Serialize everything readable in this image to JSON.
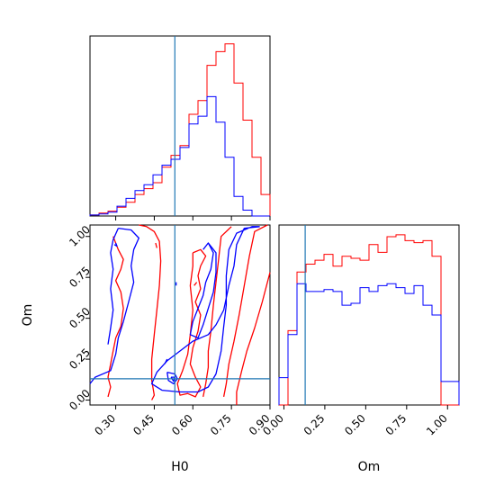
{
  "chart_data": {
    "type": "corner",
    "parameters": [
      "H0",
      "Om"
    ],
    "axis_labels": {
      "H0": "H0",
      "Om": "Om"
    },
    "ranges": {
      "H0": [
        0.2,
        0.9
      ],
      "Om": [
        -0.03,
        1.07
      ]
    },
    "truth": {
      "H0": 0.53,
      "Om": 0.13
    },
    "truth_color": "#1f77b4",
    "series_colors": {
      "red": "#ff0000",
      "blue": "#0000ff"
    },
    "ticks": {
      "H0": {
        "values": [
          0.3,
          0.45,
          0.6,
          0.75,
          0.9
        ],
        "labels": [
          "0.30",
          "0.45",
          "0.60",
          "0.75",
          "0.90"
        ]
      },
      "Om_y": {
        "values": [
          0.0,
          0.25,
          0.5,
          0.75,
          1.0
        ],
        "labels": [
          "0.00",
          "0.25",
          "0.50",
          "0.75",
          "1.00"
        ]
      },
      "Om_x": {
        "values": [
          0.0,
          0.25,
          0.5,
          0.75,
          1.0
        ],
        "labels": [
          "0.00",
          "0.25",
          "0.50",
          "0.75",
          "1.00"
        ]
      }
    },
    "hist_H0": {
      "bin_edges": [
        0.2,
        0.235,
        0.27,
        0.305,
        0.34,
        0.375,
        0.41,
        0.445,
        0.48,
        0.515,
        0.55,
        0.585,
        0.62,
        0.655,
        0.69,
        0.725,
        0.76,
        0.795,
        0.83,
        0.865,
        0.9
      ],
      "red": [
        0.5,
        1.5,
        2.5,
        4.5,
        7.0,
        11.0,
        14.0,
        17.0,
        25.0,
        31.0,
        36.0,
        52.0,
        59.0,
        77.0,
        84.0,
        88.0,
        68.0,
        49.0,
        30.0,
        11.0
      ],
      "blue": [
        0.5,
        1.0,
        2.0,
        5.0,
        9.0,
        13.0,
        16.0,
        21.0,
        26.0,
        29.0,
        35.0,
        47.0,
        51.0,
        61.0,
        48.0,
        30.0,
        10.0,
        3.0,
        0.0,
        0.0
      ]
    },
    "hist_Om": {
      "bin_edges": [
        -0.03,
        0.025,
        0.08,
        0.135,
        0.19,
        0.245,
        0.3,
        0.355,
        0.41,
        0.465,
        0.52,
        0.575,
        0.63,
        0.685,
        0.74,
        0.795,
        0.85,
        0.905,
        0.96,
        1.015,
        1.07
      ],
      "red": [
        0.0,
        38.0,
        68.0,
        72.0,
        74.0,
        77.0,
        71.0,
        76.0,
        75.0,
        74.0,
        82.0,
        78.0,
        86.0,
        87.0,
        84.0,
        83.0,
        84.0,
        76.0,
        0.0,
        0.0
      ],
      "blue": [
        14.0,
        36.0,
        62.0,
        58.0,
        58.0,
        59.0,
        58.0,
        51.0,
        52.0,
        60.0,
        58.0,
        61.0,
        62.0,
        60.0,
        57.0,
        61.0,
        51.0,
        46.0,
        12.0,
        12.0
      ]
    },
    "contours_2d": {
      "red": [
        [
          [
            0.39,
            1.07
          ],
          [
            0.42,
            1.06
          ],
          [
            0.45,
            1.03
          ],
          [
            0.47,
            0.97
          ],
          [
            0.475,
            0.85
          ],
          [
            0.47,
            0.7
          ],
          [
            0.46,
            0.55
          ],
          [
            0.45,
            0.4
          ],
          [
            0.44,
            0.25
          ],
          [
            0.44,
            0.12
          ],
          [
            0.45,
            0.03
          ],
          [
            0.44,
            0.0
          ]
        ],
        [
          [
            0.29,
            1.0
          ],
          [
            0.31,
            0.92
          ],
          [
            0.33,
            0.86
          ],
          [
            0.32,
            0.8
          ],
          [
            0.3,
            0.73
          ],
          [
            0.32,
            0.66
          ],
          [
            0.33,
            0.56
          ],
          [
            0.32,
            0.45
          ],
          [
            0.3,
            0.38
          ],
          [
            0.29,
            0.3
          ],
          [
            0.28,
            0.22
          ],
          [
            0.27,
            0.14
          ],
          [
            0.28,
            0.08
          ],
          [
            0.27,
            0.02
          ]
        ],
        [
          [
            0.75,
            1.06
          ],
          [
            0.71,
            1.0
          ],
          [
            0.7,
            0.86
          ],
          [
            0.69,
            0.72
          ],
          [
            0.68,
            0.58
          ],
          [
            0.67,
            0.42
          ],
          [
            0.66,
            0.3
          ],
          [
            0.66,
            0.2
          ],
          [
            0.65,
            0.1
          ],
          [
            0.64,
            0.02
          ]
        ],
        [
          [
            0.89,
            1.07
          ],
          [
            0.84,
            1.03
          ],
          [
            0.82,
            0.88
          ],
          [
            0.8,
            0.7
          ],
          [
            0.78,
            0.52
          ],
          [
            0.76,
            0.36
          ],
          [
            0.74,
            0.22
          ],
          [
            0.73,
            0.1
          ],
          [
            0.72,
            0.02
          ]
        ],
        [
          [
            0.9,
            0.78
          ],
          [
            0.87,
            0.6
          ],
          [
            0.84,
            0.44
          ],
          [
            0.81,
            0.3
          ],
          [
            0.79,
            0.18
          ],
          [
            0.77,
            0.05
          ],
          [
            0.77,
            -0.03
          ]
        ],
        [
          [
            0.6,
            0.9
          ],
          [
            0.63,
            0.92
          ],
          [
            0.65,
            0.88
          ],
          [
            0.63,
            0.82
          ],
          [
            0.62,
            0.76
          ],
          [
            0.63,
            0.68
          ],
          [
            0.61,
            0.6
          ],
          [
            0.63,
            0.52
          ],
          [
            0.62,
            0.42
          ],
          [
            0.6,
            0.32
          ],
          [
            0.59,
            0.22
          ],
          [
            0.61,
            0.14
          ],
          [
            0.63,
            0.08
          ],
          [
            0.61,
            0.02
          ],
          [
            0.58,
            0.04
          ],
          [
            0.55,
            0.03
          ],
          [
            0.54,
            0.1
          ],
          [
            0.56,
            0.18
          ],
          [
            0.58,
            0.28
          ],
          [
            0.59,
            0.4
          ],
          [
            0.6,
            0.55
          ],
          [
            0.59,
            0.7
          ],
          [
            0.6,
            0.82
          ],
          [
            0.6,
            0.9
          ]
        ],
        [
          [
            0.455,
            0.96
          ],
          [
            0.46,
            0.93
          ]
        ],
        [
          [
            0.605,
            0.7
          ],
          [
            0.615,
            0.72
          ]
        ]
      ],
      "blue": [
        [
          [
            0.31,
            1.05
          ],
          [
            0.36,
            1.04
          ],
          [
            0.39,
            0.99
          ],
          [
            0.37,
            0.92
          ],
          [
            0.36,
            0.82
          ],
          [
            0.37,
            0.72
          ],
          [
            0.35,
            0.6
          ],
          [
            0.33,
            0.48
          ],
          [
            0.31,
            0.38
          ],
          [
            0.3,
            0.28
          ],
          [
            0.28,
            0.18
          ],
          [
            0.22,
            0.14
          ],
          [
            0.2,
            0.1
          ]
        ],
        [
          [
            0.31,
            1.05
          ],
          [
            0.29,
            0.98
          ],
          [
            0.28,
            0.9
          ],
          [
            0.29,
            0.8
          ],
          [
            0.28,
            0.68
          ],
          [
            0.29,
            0.55
          ],
          [
            0.28,
            0.44
          ],
          [
            0.27,
            0.34
          ]
        ],
        [
          [
            0.86,
            1.06
          ],
          [
            0.8,
            1.05
          ],
          [
            0.77,
            0.95
          ],
          [
            0.76,
            0.82
          ],
          [
            0.74,
            0.7
          ],
          [
            0.72,
            0.55
          ],
          [
            0.69,
            0.46
          ],
          [
            0.66,
            0.4
          ],
          [
            0.6,
            0.36
          ],
          [
            0.55,
            0.3
          ],
          [
            0.5,
            0.24
          ],
          [
            0.46,
            0.17
          ],
          [
            0.44,
            0.1
          ],
          [
            0.48,
            0.06
          ],
          [
            0.55,
            0.05
          ],
          [
            0.62,
            0.05
          ],
          [
            0.66,
            0.08
          ],
          [
            0.69,
            0.16
          ],
          [
            0.71,
            0.3
          ],
          [
            0.72,
            0.45
          ],
          [
            0.73,
            0.58
          ],
          [
            0.73,
            0.76
          ],
          [
            0.74,
            0.92
          ],
          [
            0.77,
            1.02
          ],
          [
            0.83,
            1.06
          ],
          [
            0.86,
            1.06
          ]
        ],
        [
          [
            0.64,
            0.92
          ],
          [
            0.66,
            0.96
          ],
          [
            0.68,
            0.9
          ],
          [
            0.67,
            0.8
          ],
          [
            0.65,
            0.72
          ],
          [
            0.64,
            0.64
          ],
          [
            0.62,
            0.56
          ],
          [
            0.6,
            0.48
          ],
          [
            0.59,
            0.4
          ],
          [
            0.62,
            0.38
          ],
          [
            0.64,
            0.46
          ],
          [
            0.66,
            0.56
          ],
          [
            0.68,
            0.66
          ],
          [
            0.69,
            0.78
          ],
          [
            0.69,
            0.9
          ],
          [
            0.66,
            0.96
          ]
        ],
        [
          [
            0.5,
            0.17
          ],
          [
            0.53,
            0.16
          ],
          [
            0.54,
            0.13
          ],
          [
            0.525,
            0.1
          ],
          [
            0.505,
            0.12
          ],
          [
            0.5,
            0.17
          ]
        ],
        [
          [
            0.515,
            0.14
          ],
          [
            0.53,
            0.14
          ],
          [
            0.525,
            0.115
          ],
          [
            0.515,
            0.14
          ]
        ],
        [
          [
            0.49,
            0.22
          ],
          [
            0.5,
            0.25
          ]
        ],
        [
          [
            0.535,
            0.7
          ],
          [
            0.535,
            0.72
          ]
        ],
        [
          [
            0.295,
            0.95
          ],
          [
            0.305,
            0.94
          ],
          [
            0.3,
            0.96
          ]
        ]
      ]
    }
  }
}
